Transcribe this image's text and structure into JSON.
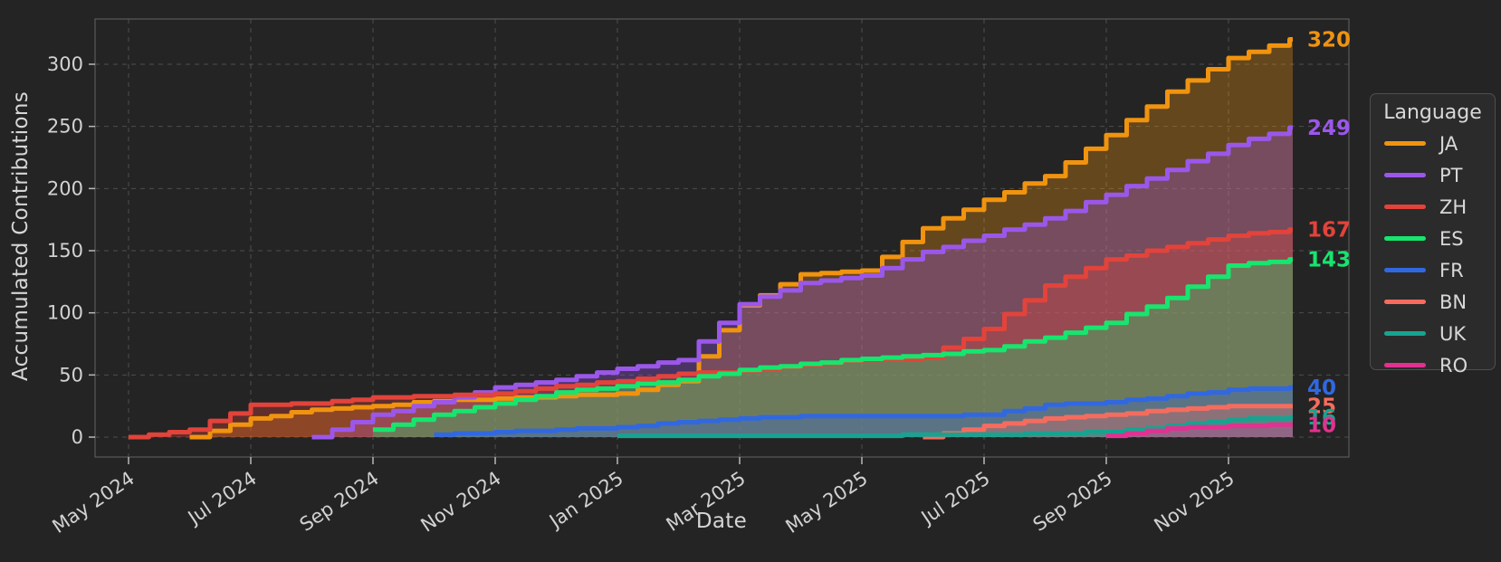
{
  "figure": {
    "background": "#242424",
    "legend_background": "#2b2b2b",
    "spine_color": "#5a5a5a",
    "grid_color": "rgba(175,175,175,0.30)",
    "tick_color": "#b8b8b8",
    "tick_label_color": "#d2d2d2"
  },
  "axes": {
    "x_label": "Date",
    "y_label": "Accumulated Contributions",
    "y_ticks": [
      0,
      50,
      100,
      150,
      200,
      250,
      300
    ],
    "x_ticks": [
      {
        "label": "May 2024",
        "month_index": 0
      },
      {
        "label": "Jul 2024",
        "month_index": 2
      },
      {
        "label": "Sep 2024",
        "month_index": 4
      },
      {
        "label": "Nov 2024",
        "month_index": 6
      },
      {
        "label": "Jan 2025",
        "month_index": 8
      },
      {
        "label": "Mar 2025",
        "month_index": 10
      },
      {
        "label": "May 2025",
        "month_index": 12
      },
      {
        "label": "Jul 2025",
        "month_index": 14
      },
      {
        "label": "Sep 2025",
        "month_index": 16
      },
      {
        "label": "Nov 2025",
        "month_index": 18
      }
    ]
  },
  "legend": {
    "title": "Language",
    "entries": [
      {
        "label": "JA",
        "color": "#f0930f"
      },
      {
        "label": "PT",
        "color": "#9b57ea"
      },
      {
        "label": "ZH",
        "color": "#e2433a"
      },
      {
        "label": "ES",
        "color": "#17e56e"
      },
      {
        "label": "FR",
        "color": "#3168e0"
      },
      {
        "label": "BN",
        "color": "#f56c5e"
      },
      {
        "label": "UK",
        "color": "#18a390"
      },
      {
        "label": "RO",
        "color": "#e23190"
      }
    ]
  },
  "chart_data": {
    "type": "line",
    "subtype": "cumulative-step",
    "title": "",
    "xlabel": "Date",
    "ylabel": "Accumulated Contributions",
    "ylim": [
      0,
      335
    ],
    "grid": true,
    "legend_title": "Language",
    "legend_position": "right",
    "x": [
      "2024-05",
      "2024-06",
      "2024-07",
      "2024-08",
      "2024-09",
      "2024-10",
      "2024-11",
      "2024-12",
      "2025-01",
      "2025-02",
      "2025-03",
      "2025-04",
      "2025-05",
      "2025-06",
      "2025-07",
      "2025-08",
      "2025-09",
      "2025-10",
      "2025-11",
      "2025-12"
    ],
    "series": [
      {
        "name": "JA",
        "color": "#f0930f",
        "end_value": 320,
        "end_label": "320",
        "values": [
          null,
          0,
          15,
          22,
          25,
          29,
          31,
          33,
          35,
          45,
          106,
          131,
          134,
          168,
          191,
          210,
          243,
          278,
          305,
          320
        ]
      },
      {
        "name": "PT",
        "color": "#9b57ea",
        "end_value": 249,
        "end_label": "249",
        "values": [
          null,
          null,
          null,
          0,
          18,
          28,
          40,
          46,
          55,
          62,
          107,
          124,
          130,
          149,
          162,
          176,
          195,
          215,
          235,
          249
        ]
      },
      {
        "name": "ZH",
        "color": "#e2433a",
        "end_value": 167,
        "end_label": "167",
        "values": [
          0,
          6,
          26,
          27,
          32,
          33,
          35,
          41,
          45,
          51,
          53,
          58,
          62,
          64,
          87,
          122,
          143,
          153,
          162,
          167
        ]
      },
      {
        "name": "ES",
        "color": "#17e56e",
        "end_value": 143,
        "end_label": "143",
        "values": [
          null,
          null,
          null,
          null,
          6,
          18,
          27,
          36,
          41,
          46,
          54,
          59,
          63,
          66,
          70,
          80,
          92,
          112,
          138,
          143
        ]
      },
      {
        "name": "FR",
        "color": "#3168e0",
        "end_value": 40,
        "end_label": "40",
        "values": [
          null,
          null,
          null,
          null,
          null,
          2,
          4,
          6,
          8,
          12,
          15,
          17,
          17,
          17,
          18,
          26,
          28,
          33,
          38,
          40
        ]
      },
      {
        "name": "BN",
        "color": "#f56c5e",
        "end_value": 25,
        "end_label": "25",
        "values": [
          null,
          null,
          null,
          null,
          null,
          null,
          null,
          null,
          null,
          null,
          null,
          null,
          null,
          0,
          9,
          15,
          18,
          22,
          25,
          25
        ]
      },
      {
        "name": "UK",
        "color": "#18a390",
        "end_value": 16,
        "end_label": "16",
        "values": [
          null,
          null,
          null,
          null,
          null,
          null,
          null,
          null,
          1,
          1,
          1,
          1,
          1,
          2,
          2,
          3,
          4,
          9,
          14,
          16
        ]
      },
      {
        "name": "RO",
        "color": "#e23190",
        "end_value": 10,
        "end_label": "10",
        "values": [
          null,
          null,
          null,
          null,
          null,
          null,
          null,
          null,
          null,
          null,
          null,
          null,
          null,
          null,
          null,
          null,
          1,
          7,
          9,
          10
        ]
      }
    ]
  }
}
